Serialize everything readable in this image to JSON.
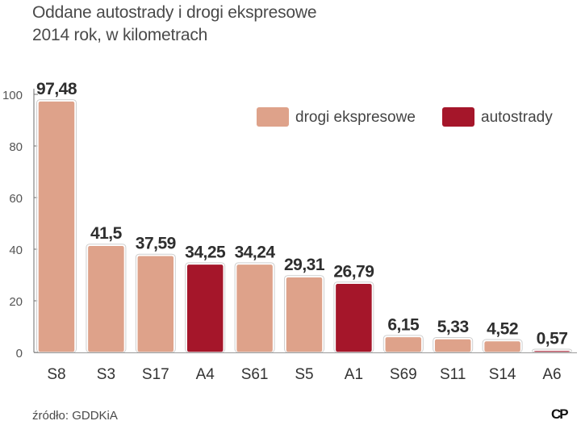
{
  "chart_data": {
    "type": "bar",
    "title": "Oddane autostrady i drogi ekspresowe",
    "subtitle": "2014 rok, w kilometrach",
    "categories": [
      "S8",
      "S3",
      "S17",
      "A4",
      "S61",
      "S5",
      "A1",
      "S69",
      "S11",
      "S14",
      "A6"
    ],
    "values": [
      97.48,
      41.5,
      37.59,
      34.25,
      34.24,
      29.31,
      26.79,
      6.15,
      5.33,
      4.52,
      0.57
    ],
    "value_labels": [
      "97,48",
      "41,5",
      "37,59",
      "34,25",
      "34,24",
      "29,31",
      "26,79",
      "6,15",
      "5,33",
      "4,52",
      "0,57"
    ],
    "series_type": [
      "drogi ekspresowe",
      "drogi ekspresowe",
      "drogi ekspresowe",
      "autostrady",
      "drogi ekspresowe",
      "drogi ekspresowe",
      "autostrady",
      "drogi ekspresowe",
      "drogi ekspresowe",
      "drogi ekspresowe",
      "autostrady"
    ],
    "yticks": [
      0,
      20,
      40,
      60,
      80,
      100
    ],
    "ylim": [
      0,
      100
    ],
    "legend": [
      {
        "name": "drogi ekspresowe",
        "color": "#dea28a"
      },
      {
        "name": "autostrady",
        "color": "#a5162a"
      }
    ],
    "legend_position": "top-right",
    "xlabel": "",
    "ylabel": ""
  },
  "source": "źródło: GDDKiA",
  "logo": "CP"
}
